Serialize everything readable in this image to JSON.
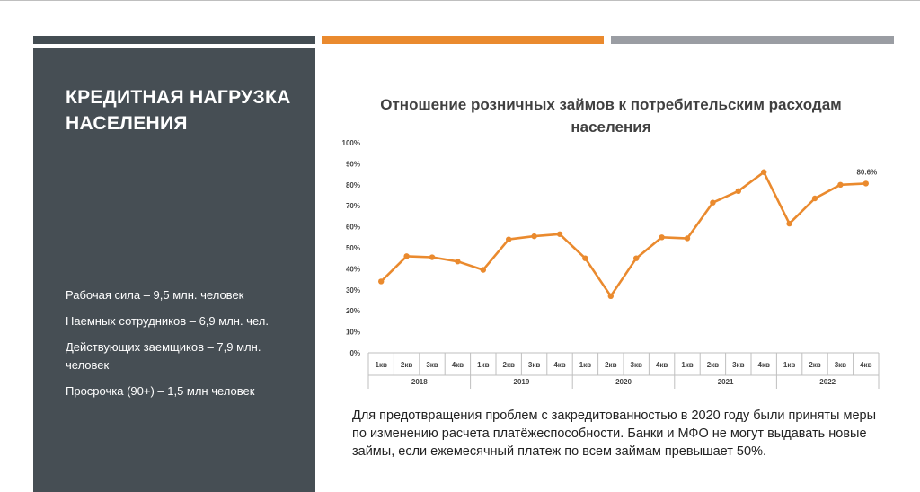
{
  "slide": {
    "title": "КРЕДИТНАЯ НАГРУЗКА НАСЕЛЕНИЯ",
    "facts": [
      "Рабочая сила – 9,5 млн. человек",
      "Наемных сотрудников – 6,9 млн. чел.",
      "Действующих заемщиков – 7,9 млн. человек",
      "Просрочка (90+) – 1,5 млн человек"
    ],
    "note": "Для предотвращения проблем с закредитованностью в 2020 году были приняты меры по изменению расчета платёжеспособности. Банки и МФО не могут выдавать новые займы, если ежемесячный платеж по всем займам превышает 50%.",
    "colors": {
      "panel": "#464e54",
      "accent": "#ea8a2e",
      "grey_bar": "#9a9da3"
    }
  },
  "chart_data": {
    "type": "line",
    "title": "Отношение розничных займов к потребительским расходам населения",
    "groups": [
      "2018",
      "2019",
      "2020",
      "2021",
      "2022"
    ],
    "quarters": [
      "1кв",
      "2кв",
      "3кв",
      "4кв"
    ],
    "categories": [
      "1кв",
      "2кв",
      "3кв",
      "4кв",
      "1кв",
      "2кв",
      "3кв",
      "4кв",
      "1кв",
      "2кв",
      "3кв",
      "4кв",
      "1кв",
      "2кв",
      "3кв",
      "4кв",
      "1кв",
      "2кв",
      "3кв",
      "4кв"
    ],
    "series": [
      {
        "values": [
          34,
          46,
          45.5,
          43.5,
          39.5,
          54,
          55.5,
          56.5,
          45,
          27,
          45,
          55,
          54.5,
          71.5,
          77,
          86,
          61.5,
          73.5,
          80,
          80.6
        ]
      }
    ],
    "yticks": [
      "0%",
      "10%",
      "20%",
      "30%",
      "40%",
      "50%",
      "60%",
      "70%",
      "80%",
      "90%",
      "100%"
    ],
    "ylim": [
      0,
      100
    ],
    "data_labels": [
      {
        "index": 19,
        "text": "80.6%"
      }
    ],
    "line_color": "#ea8a2e",
    "grid": false,
    "legend": "none"
  }
}
